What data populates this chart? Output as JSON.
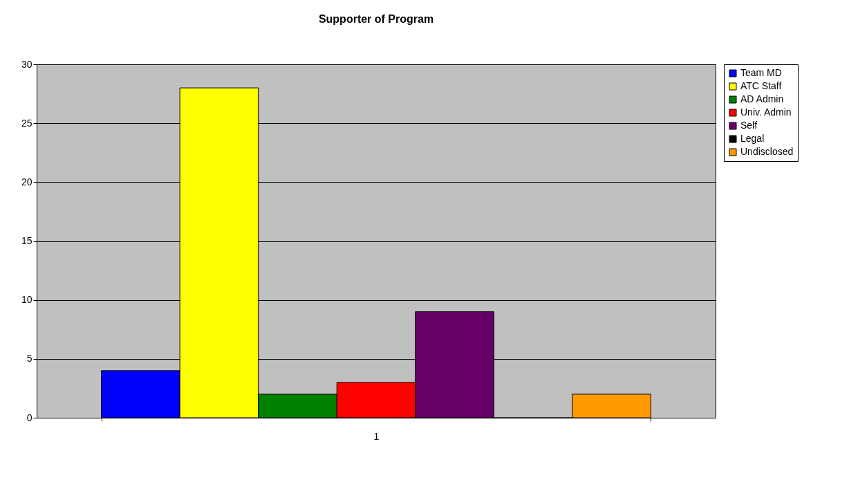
{
  "chart_data": {
    "type": "bar",
    "title": "Supporter of Program",
    "categories": [
      "1"
    ],
    "series": [
      {
        "name": "Team MD",
        "color": "#0000ff",
        "values": [
          4
        ]
      },
      {
        "name": "ATC Staff",
        "color": "#ffff00",
        "values": [
          28
        ]
      },
      {
        "name": "AD Admin",
        "color": "#008000",
        "values": [
          2
        ]
      },
      {
        "name": "Univ. Admin",
        "color": "#ff0000",
        "values": [
          3
        ]
      },
      {
        "name": "Self",
        "color": "#660066",
        "values": [
          9
        ]
      },
      {
        "name": "Legal",
        "color": "#000000",
        "values": [
          0
        ]
      },
      {
        "name": "Undisclosed",
        "color": "#ff9900",
        "values": [
          2
        ]
      }
    ],
    "ylim": [
      0,
      30
    ],
    "yticks": [
      0,
      5,
      10,
      15,
      20,
      25,
      30
    ],
    "grid": "y",
    "legend": "right"
  }
}
